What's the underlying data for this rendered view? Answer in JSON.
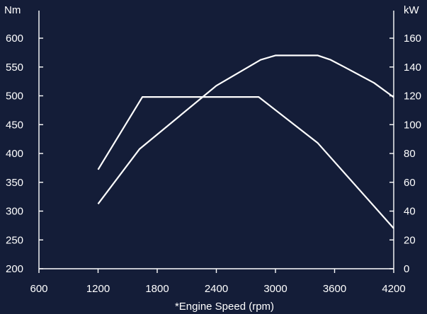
{
  "chart_data": {
    "type": "line",
    "xlabel": "*Engine Speed (rpm)",
    "x_ticks": [
      600,
      1200,
      1800,
      2400,
      3000,
      3600,
      4200
    ],
    "xlim": [
      600,
      4200
    ],
    "left_axis": {
      "unit": "Nm",
      "ylim": [
        200,
        640
      ],
      "ticks": [
        200,
        250,
        300,
        350,
        400,
        450,
        500,
        550,
        600
      ]
    },
    "right_axis": {
      "unit": "kW",
      "ylim": [
        0,
        180
      ],
      "ticks": [
        0,
        20,
        40,
        60,
        80,
        100,
        120,
        140,
        160
      ]
    },
    "series": [
      {
        "axis": "left",
        "x": [
          1200,
          1650,
          2830,
          3430,
          4200
        ],
        "y": [
          372,
          498,
          498,
          418,
          270
        ]
      },
      {
        "axis": "right",
        "x": [
          1200,
          1620,
          2400,
          2850,
          3000,
          3430,
          3560,
          3700,
          4000,
          4200
        ],
        "y": [
          45,
          83,
          127,
          145,
          148,
          148,
          145,
          140,
          129,
          119
        ]
      }
    ],
    "grid": false,
    "legend": "none"
  },
  "colors": {
    "background": "#141d38",
    "foreground": "#ffffff"
  }
}
